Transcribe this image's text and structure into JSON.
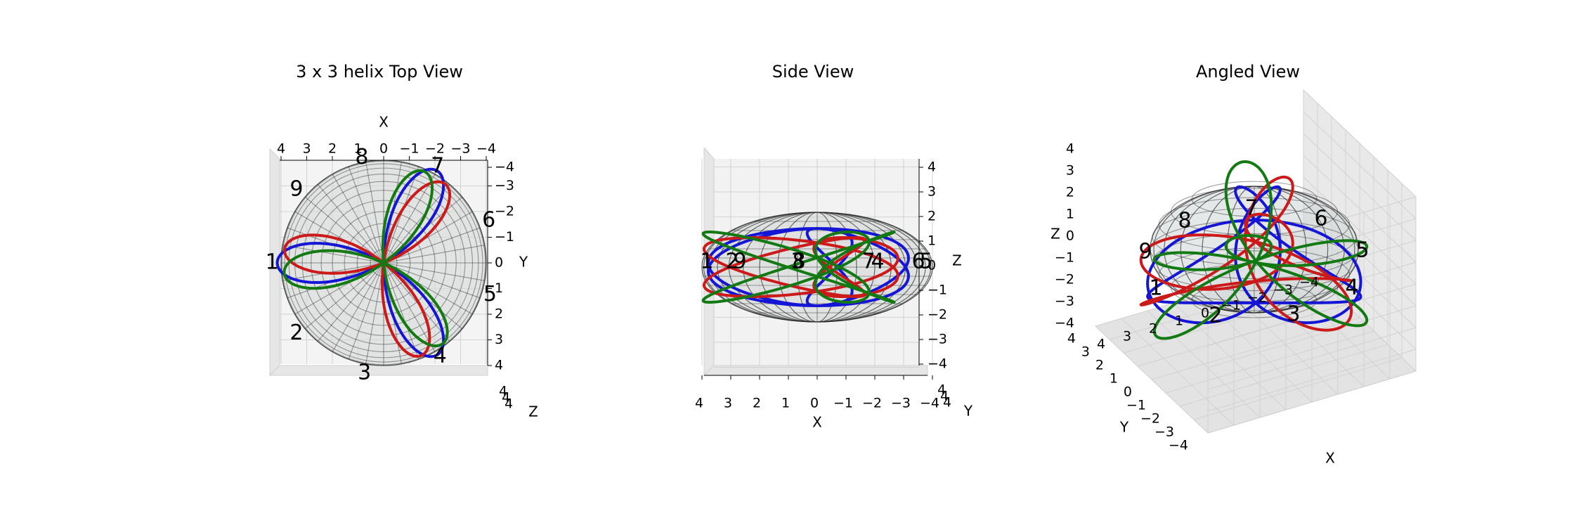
{
  "chart_data": [
    {
      "type": "line",
      "view": "top",
      "title": "3 x 3 helix Top View",
      "xlabel": "X",
      "ylabel": "Y",
      "zlabel": "Z",
      "xlim": [
        4,
        -4
      ],
      "ylim": [
        -4,
        4
      ],
      "zlim": [
        -4,
        4
      ],
      "x_ticks": [
        "4",
        "3",
        "2",
        "1",
        "0",
        "−1",
        "−2",
        "−3",
        "−4"
      ],
      "y_ticks": [
        "−4",
        "−3",
        "−2",
        "−1",
        "0",
        "1",
        "2",
        "3",
        "4"
      ],
      "z_ticks": [
        "4",
        "4",
        "4"
      ],
      "grid": true,
      "series": [
        {
          "color": "#1515d6",
          "petal_angles_deg": [
            0,
            120,
            240
          ],
          "petal_length": 4.15
        },
        {
          "color": "#cc1a1a",
          "petal_angles_deg": [
            8,
            128,
            248
          ],
          "petal_length": 3.9
        },
        {
          "color": "#137a13",
          "petal_angles_deg": [
            -6,
            114,
            234
          ],
          "petal_length": 3.9
        }
      ],
      "point_labels": [
        {
          "text": "1",
          "x": 4.35,
          "y": 0.0
        },
        {
          "text": "2",
          "x": 3.4,
          "y": 2.75
        },
        {
          "text": "3",
          "x": 0.75,
          "y": 4.3
        },
        {
          "text": "4",
          "x": -2.2,
          "y": 3.65
        },
        {
          "text": "5",
          "x": -4.15,
          "y": 1.25
        },
        {
          "text": "6",
          "x": -4.1,
          "y": -1.65
        },
        {
          "text": "7",
          "x": -2.1,
          "y": -3.75
        },
        {
          "text": "8",
          "x": 0.85,
          "y": -4.1
        },
        {
          "text": "9",
          "x": 3.4,
          "y": -2.85
        }
      ]
    },
    {
      "type": "line",
      "view": "side",
      "title": "Side View",
      "xlabel": "X",
      "ylabel": "Y",
      "zlabel": "Z",
      "xlim": [
        4,
        -4
      ],
      "ylim": [
        -4,
        4
      ],
      "zlim": [
        -4,
        4
      ],
      "x_ticks": [
        "4",
        "3",
        "2",
        "1",
        "0",
        "−1",
        "−2",
        "−3",
        "−4"
      ],
      "z_ticks": [
        "4",
        "3",
        "2",
        "1",
        "0",
        "−1",
        "−2",
        "−3",
        "−4"
      ],
      "y_ticks": [
        "4",
        "4",
        "4"
      ],
      "grid": true,
      "series": [
        {
          "color": "#1515d6"
        },
        {
          "color": "#cc1a1a"
        },
        {
          "color": "#137a13"
        }
      ],
      "point_labels": [
        {
          "text": "1",
          "x": 4.35,
          "z": 0.0
        },
        {
          "text": "2",
          "x": 3.4,
          "z": 0.0
        },
        {
          "text": "9",
          "x": 3.1,
          "z": 0.0
        },
        {
          "text": "3",
          "x": 0.75,
          "z": 0.0
        },
        {
          "text": "8",
          "x": 0.85,
          "z": 0.0
        },
        {
          "text": "7",
          "x": -2.1,
          "z": 0.0
        },
        {
          "text": "4",
          "x": -2.3,
          "z": 0.0
        },
        {
          "text": "6",
          "x": -4.0,
          "z": 0.0
        },
        {
          "text": "5",
          "x": -4.25,
          "z": 0.0
        }
      ]
    },
    {
      "type": "line",
      "view": "angled",
      "title": "Angled View",
      "xlabel": "X",
      "ylabel": "Y",
      "zlabel": "Z",
      "xlim": [
        4,
        -4
      ],
      "ylim": [
        -4,
        4
      ],
      "zlim": [
        -4,
        4
      ],
      "x_ticks": [
        "4",
        "3",
        "2",
        "1",
        "0",
        "−1",
        "−2",
        "−3",
        "−4"
      ],
      "y_ticks": [
        "−4",
        "−3",
        "−2",
        "−1",
        "0",
        "1",
        "2",
        "3",
        "4"
      ],
      "z_ticks": [
        "4",
        "3",
        "2",
        "1",
        "0",
        "−1",
        "−2",
        "−3",
        "−4"
      ],
      "grid": true,
      "series": [
        {
          "color": "#1515d6"
        },
        {
          "color": "#cc1a1a"
        },
        {
          "color": "#137a13"
        }
      ],
      "point_labels": [
        {
          "text": "1",
          "x": 4.2,
          "y": 0.0,
          "z": -1.0
        },
        {
          "text": "2",
          "x": 2.2,
          "y": 2.6,
          "z": -2.5
        },
        {
          "text": "3",
          "x": -1.4,
          "y": 3.0,
          "z": -2.0
        },
        {
          "text": "4",
          "x": -4.1,
          "y": 1.0,
          "z": -0.8
        },
        {
          "text": "5",
          "x": -4.0,
          "y": -1.5,
          "z": 0.5
        },
        {
          "text": "6",
          "x": -2.0,
          "y": -2.0,
          "z": 1.5
        },
        {
          "text": "7",
          "x": 0.5,
          "y": -1.5,
          "z": 2.3
        },
        {
          "text": "8",
          "x": 2.5,
          "y": -2.0,
          "z": 1.5
        },
        {
          "text": "9",
          "x": 4.2,
          "y": -1.0,
          "z": 0.5
        }
      ]
    }
  ]
}
